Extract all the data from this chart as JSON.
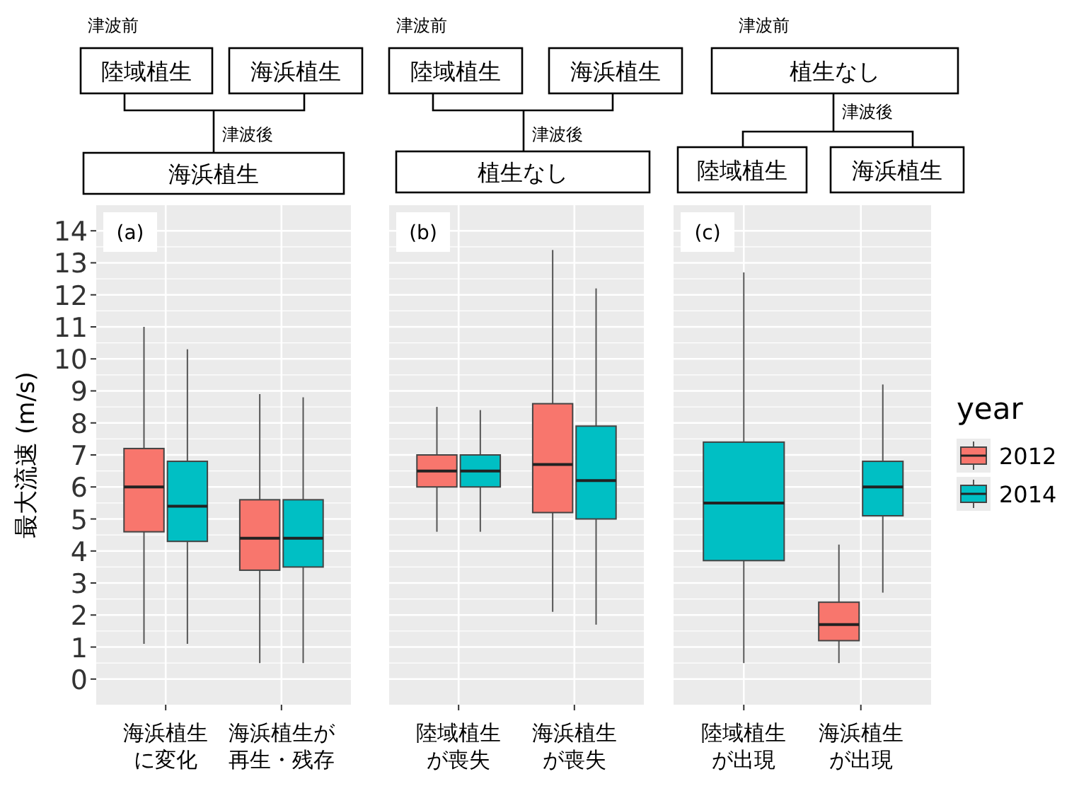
{
  "chart_data": [
    {
      "type": "box",
      "title": "(a)",
      "ylabel": "最大流速 (m/s)",
      "categories": [
        "海浜植生に変化",
        "海浜植生が再生・残存"
      ],
      "ylim": [
        -0.8,
        14.8
      ],
      "yticks": [
        0,
        1,
        2,
        3,
        4,
        5,
        6,
        7,
        8,
        9,
        10,
        11,
        12,
        13,
        14
      ],
      "grid": true,
      "annotations": [
        "津波前",
        "陸域植生",
        "海浜植生",
        "津波後",
        "海浜植生"
      ],
      "series": [
        {
          "color": "#f8766d",
          "boxes": [
            {
              "low": 1.1,
              "q1": 4.6,
              "median": 6.0,
              "q3": 7.2,
              "high": 11.0
            },
            {
              "low": 0.5,
              "q1": 3.4,
              "median": 4.4,
              "q3": 5.6,
              "high": 8.9
            }
          ]
        },
        {
          "color": "#00bfc4",
          "boxes": [
            {
              "low": 1.1,
              "q1": 4.3,
              "median": 5.4,
              "q3": 6.8,
              "high": 10.3
            },
            {
              "low": 0.5,
              "q1": 3.5,
              "median": 4.4,
              "q3": 5.6,
              "high": 8.8
            }
          ]
        }
      ]
    },
    {
      "type": "box",
      "title": "(b)",
      "categories": [
        "陸域植生が喪失",
        "海浜植生が喪失"
      ],
      "ylim": [
        -0.8,
        14.8
      ],
      "yticks": [
        0,
        1,
        2,
        3,
        4,
        5,
        6,
        7,
        8,
        9,
        10,
        11,
        12,
        13,
        14
      ],
      "grid": true,
      "tick_labels": "x",
      "annotations": [
        "津波前",
        "陸域植生",
        "海浜植生",
        "津波後",
        "植生なし"
      ],
      "series": [
        {
          "color": "#f8766d",
          "boxes": [
            {
              "low": 4.6,
              "q1": 6.0,
              "median": 6.5,
              "q3": 7.0,
              "high": 8.5
            },
            {
              "low": 2.1,
              "q1": 5.2,
              "median": 6.7,
              "q3": 8.6,
              "high": 13.4
            }
          ]
        },
        {
          "color": "#00bfc4",
          "boxes": [
            {
              "low": 4.6,
              "q1": 6.0,
              "median": 6.5,
              "q3": 7.0,
              "high": 8.4
            },
            {
              "low": 1.7,
              "q1": 5.0,
              "median": 6.2,
              "q3": 7.9,
              "high": 12.2
            }
          ]
        }
      ]
    },
    {
      "type": "box",
      "title": "(c)",
      "categories": [
        "陸域植生が出現",
        "海浜植生が出現"
      ],
      "ylim": [
        -0.8,
        14.8
      ],
      "yticks": [
        0,
        1,
        2,
        3,
        4,
        5,
        6,
        7,
        8,
        9,
        10,
        11,
        12,
        13,
        14
      ],
      "grid": true,
      "tick_labels": "x",
      "legend": "right",
      "legend_title": "year",
      "annotations": [
        "津波前",
        "植生なし",
        "津波後",
        "陸域植生",
        "海浜植生"
      ],
      "series": [
        {
          "name": "2012",
          "color": "#f8766d",
          "boxes": [
            null,
            {
              "low": 0.5,
              "q1": 1.2,
              "median": 1.7,
              "q3": 2.4,
              "high": 4.2
            }
          ]
        },
        {
          "name": "2014",
          "color": "#00bfc4",
          "boxes": [
            {
              "low": 0.5,
              "q1": 3.7,
              "median": 5.5,
              "q3": 7.4,
              "high": 12.7
            },
            {
              "low": 2.7,
              "q1": 5.1,
              "median": 6.0,
              "q3": 6.8,
              "high": 9.2
            }
          ]
        }
      ]
    }
  ]
}
